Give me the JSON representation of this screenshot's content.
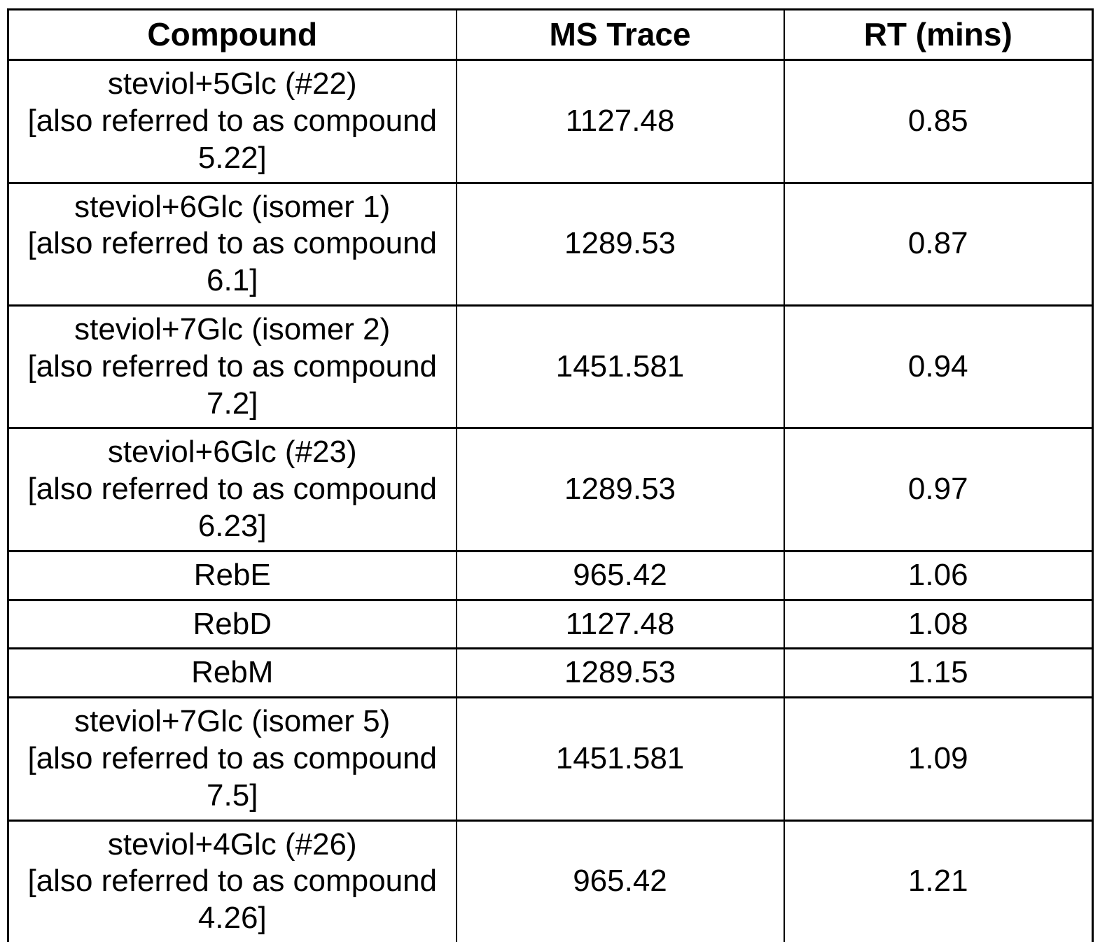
{
  "table": {
    "headers": {
      "compound": "Compound",
      "ms_trace": "MS Trace",
      "rt": "RT (mins)"
    },
    "rows": [
      {
        "compound": [
          "steviol+5Glc (#22)",
          "[also referred to as compound",
          "5.22]"
        ],
        "ms_trace": "1127.48",
        "rt": "0.85"
      },
      {
        "compound": [
          "steviol+6Glc (isomer 1)",
          "[also referred to as compound",
          "6.1]"
        ],
        "ms_trace": "1289.53",
        "rt": "0.87"
      },
      {
        "compound": [
          "steviol+7Glc (isomer 2)",
          "[also referred to as compound",
          "7.2]"
        ],
        "ms_trace": "1451.581",
        "rt": "0.94"
      },
      {
        "compound": [
          "steviol+6Glc (#23)",
          "[also referred to as compound",
          "6.23]"
        ],
        "ms_trace": "1289.53",
        "rt": "0.97"
      },
      {
        "compound": [
          "RebE"
        ],
        "ms_trace": "965.42",
        "rt": "1.06"
      },
      {
        "compound": [
          "RebD"
        ],
        "ms_trace": "1127.48",
        "rt": "1.08"
      },
      {
        "compound": [
          "RebM"
        ],
        "ms_trace": "1289.53",
        "rt": "1.15"
      },
      {
        "compound": [
          "steviol+7Glc (isomer 5)",
          "[also referred to as compound",
          "7.5]"
        ],
        "ms_trace": "1451.581",
        "rt": "1.09"
      },
      {
        "compound": [
          "steviol+4Glc (#26)",
          "[also referred to as compound",
          "4.26]"
        ],
        "ms_trace": "965.42",
        "rt": "1.21"
      }
    ]
  }
}
